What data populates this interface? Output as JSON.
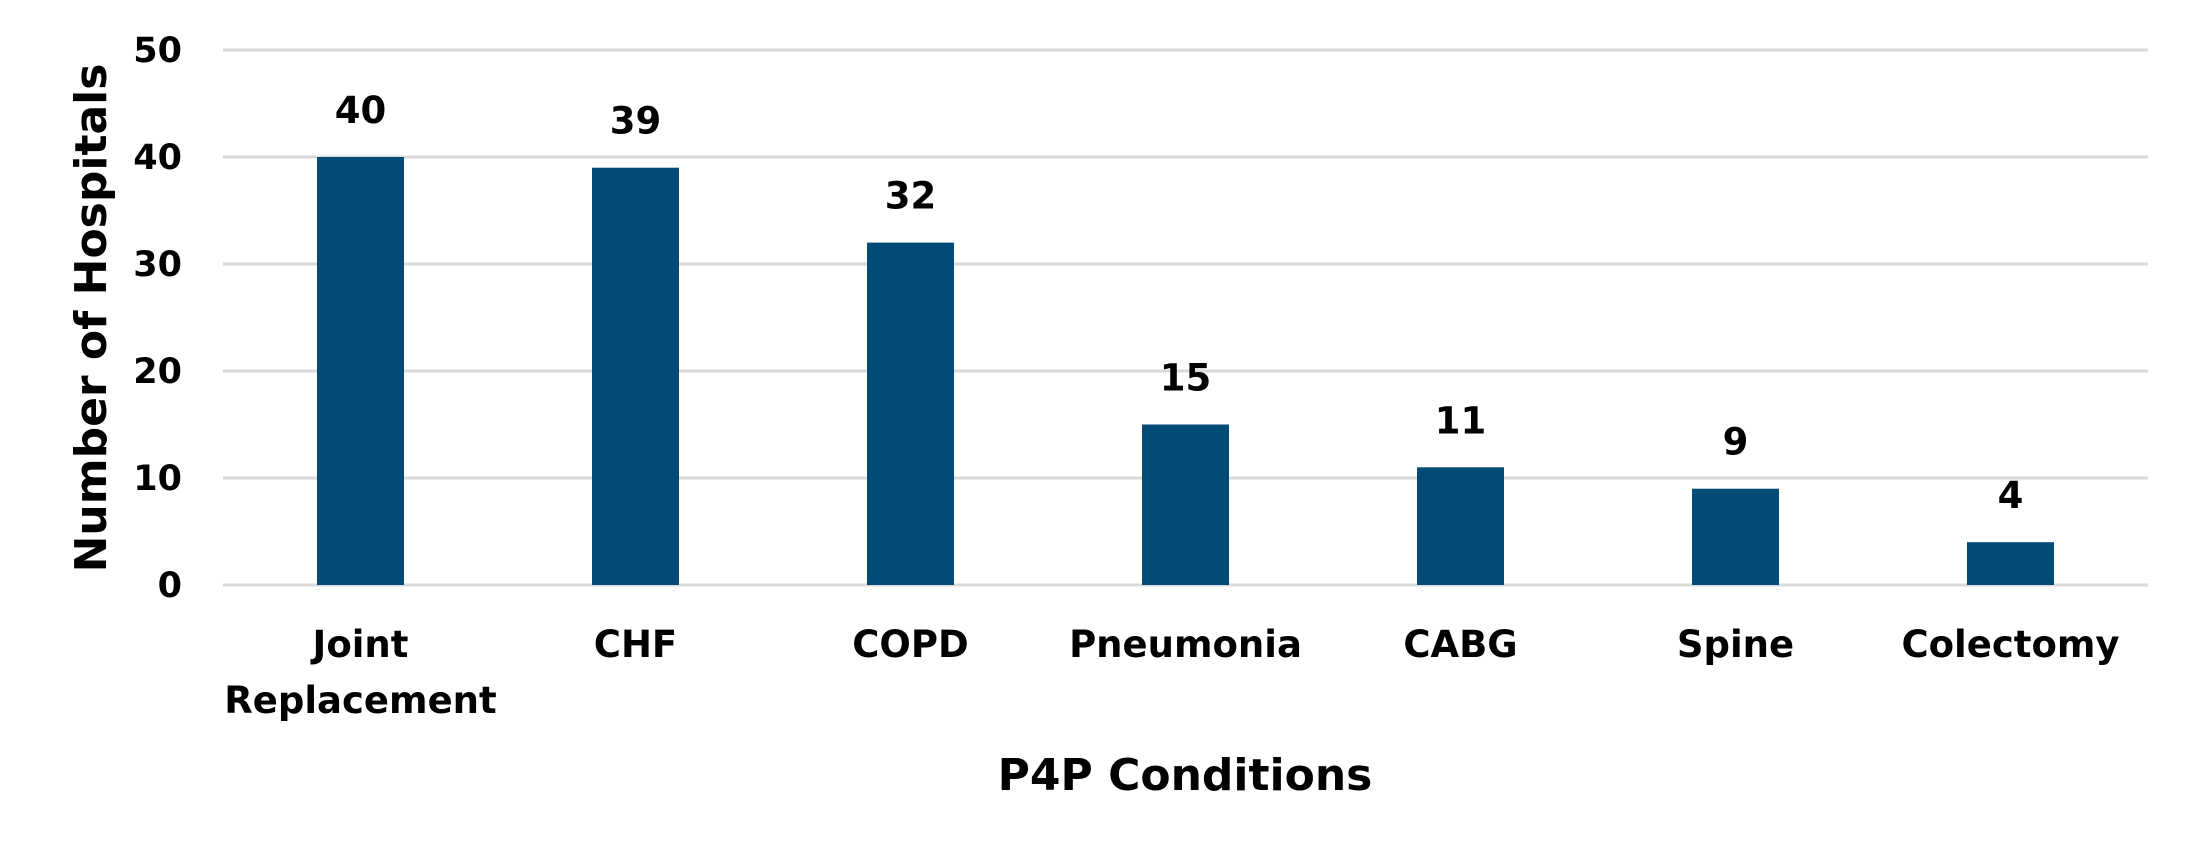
{
  "chart_data": {
    "type": "bar",
    "title": "",
    "xlabel": "P4P Conditions",
    "ylabel": "Number of Hospitals",
    "categories": [
      [
        "Joint",
        "Replacement"
      ],
      [
        "CHF"
      ],
      [
        "COPD"
      ],
      [
        "Pneumonia"
      ],
      [
        "CABG"
      ],
      [
        "Spine"
      ],
      [
        "Colectomy"
      ]
    ],
    "values": [
      40,
      39,
      32,
      15,
      11,
      9,
      4
    ],
    "ylim": [
      0,
      50
    ],
    "yticks": [
      0,
      10,
      20,
      30,
      40,
      50
    ],
    "grid": true,
    "legend": "none",
    "data_labels": true,
    "bar_color": "#024b75"
  }
}
